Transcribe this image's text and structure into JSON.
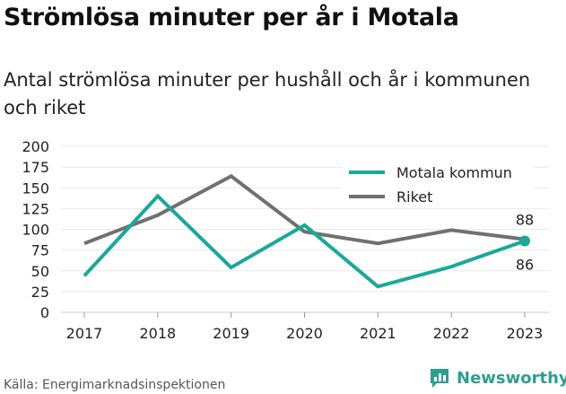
{
  "header": {
    "title": "Strömlösa minuter per år i Motala",
    "subtitle": "Antal strömlösa minuter per hushåll och år i kommunen och riket"
  },
  "footer": {
    "source": "Källa: Energimarknadsinspektionen",
    "brand": "Newsworthy",
    "brand_icon": "newsworthy-logo-icon",
    "brand_color": "#2e9e8f"
  },
  "chart_data": {
    "type": "line",
    "title": "Strömlösa minuter per år i Motala",
    "x": [
      "2017",
      "2018",
      "2019",
      "2020",
      "2021",
      "2022",
      "2023"
    ],
    "ylim": [
      0,
      200
    ],
    "yticks": [
      0,
      25,
      50,
      75,
      100,
      125,
      150,
      175,
      200
    ],
    "grid": "horizontal",
    "legend_position": "top-right",
    "series": [
      {
        "name": "Motala kommun",
        "color": "#1aa898",
        "values": [
          44,
          140,
          54,
          105,
          31,
          55,
          86
        ],
        "end_label": "86",
        "end_marker": true
      },
      {
        "name": "Riket",
        "color": "#707070",
        "values": [
          83,
          117,
          164,
          97,
          83,
          99,
          88
        ],
        "end_label": "88"
      }
    ]
  }
}
